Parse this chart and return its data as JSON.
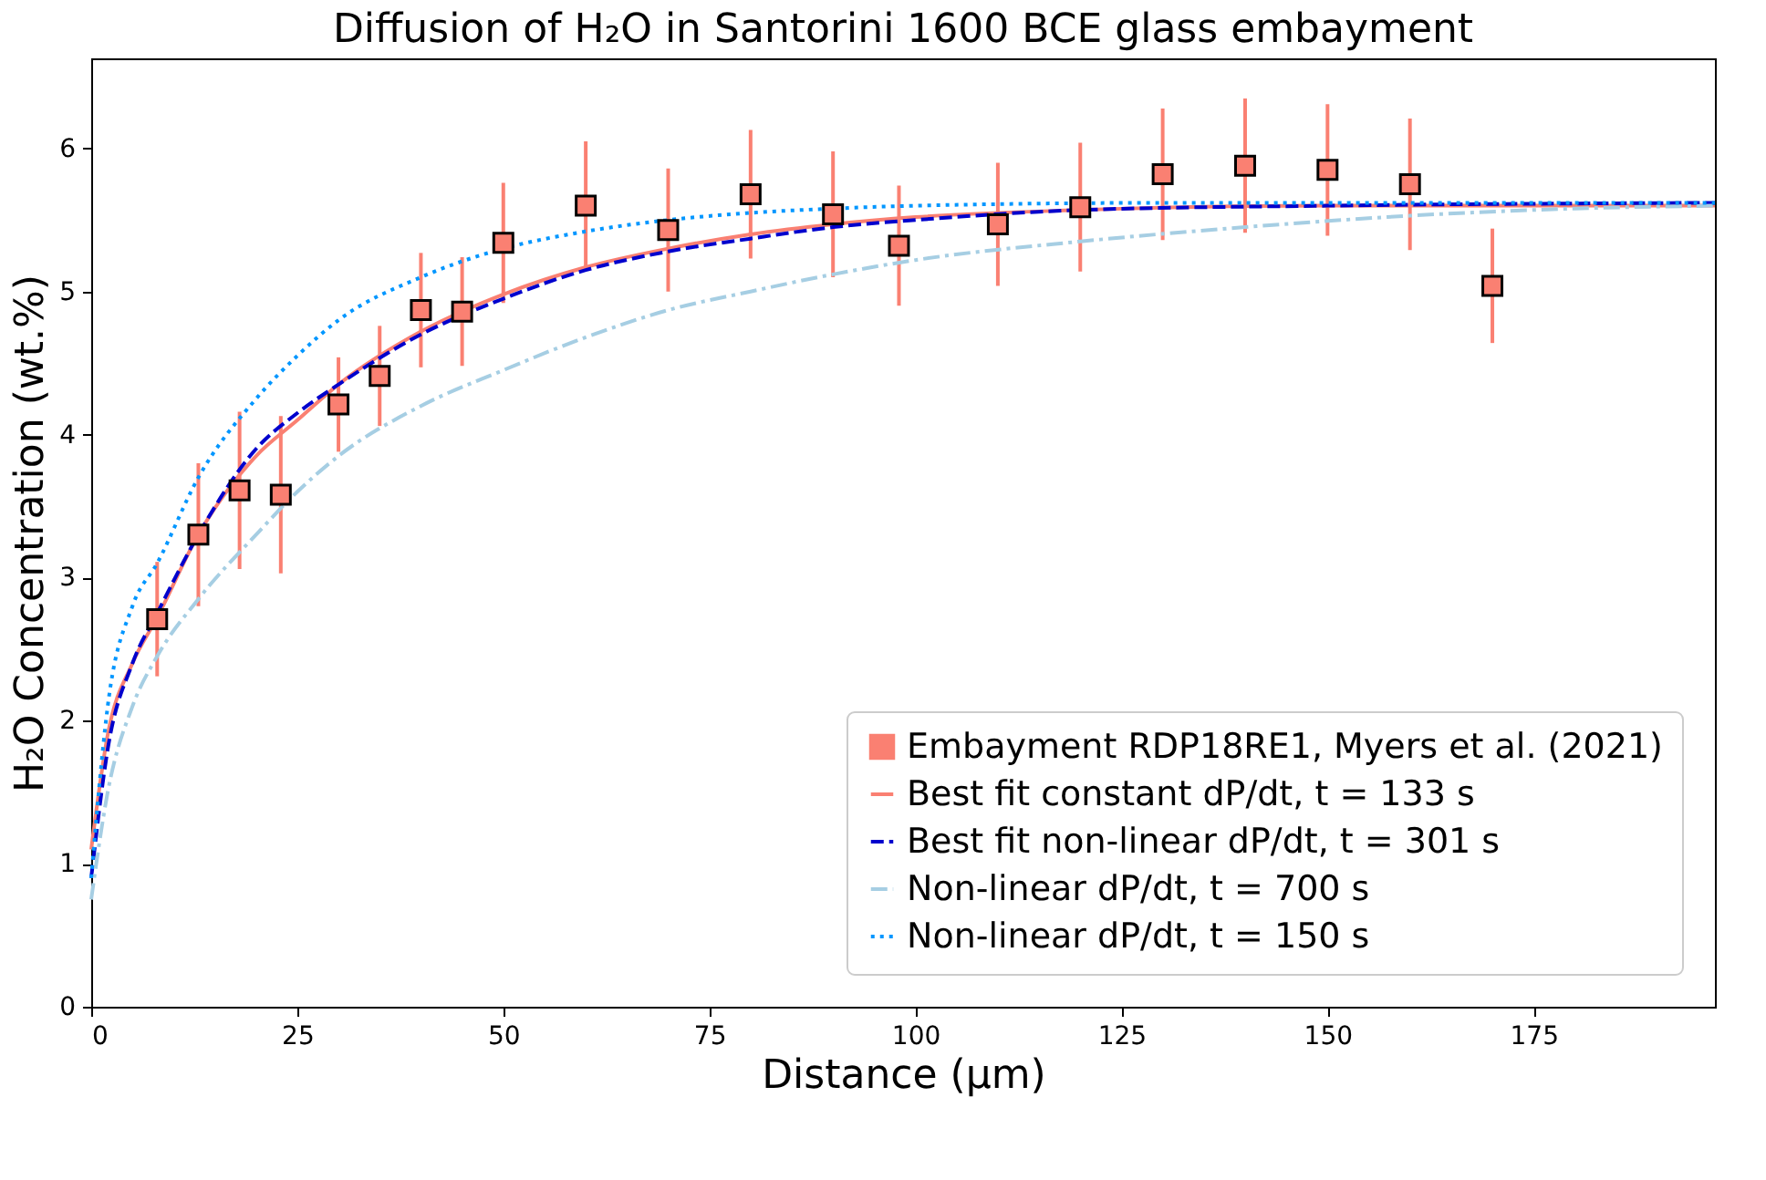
{
  "chart_data": {
    "type": "line",
    "title": "Diffusion of H₂O in Santorini 1600 BCE glass embayment",
    "xlabel": "Distance (μm)",
    "ylabel": "H₂O Concentration (wt.%)",
    "xlim": [
      0,
      197
    ],
    "xticks": [
      0,
      25,
      50,
      75,
      100,
      125,
      150,
      175
    ],
    "ylim": [
      0,
      6.63
    ],
    "yticks": [
      0,
      1,
      2,
      3,
      4,
      5,
      6
    ],
    "grid": false,
    "legend": "bottom right",
    "series": [
      {
        "name": "Embayment RDP18RE1, Myers et al. (2021)",
        "type": "scatter",
        "marker": "square",
        "color": "#fa8072",
        "x": [
          8,
          13,
          18,
          23,
          30,
          35,
          40,
          45,
          50,
          60,
          70,
          80,
          90,
          98,
          110,
          120,
          130,
          140,
          150,
          160,
          170
        ],
        "values": [
          2.71,
          3.3,
          3.61,
          3.58,
          4.21,
          4.41,
          4.87,
          4.86,
          5.34,
          5.6,
          5.43,
          5.68,
          5.54,
          5.32,
          5.47,
          5.59,
          5.82,
          5.88,
          5.85,
          5.75,
          5.04
        ],
        "errors": [
          0.4,
          0.5,
          0.55,
          0.55,
          0.33,
          0.35,
          0.4,
          0.38,
          0.42,
          0.45,
          0.43,
          0.45,
          0.44,
          0.42,
          0.43,
          0.45,
          0.46,
          0.47,
          0.46,
          0.46,
          0.4
        ]
      },
      {
        "name": "Best fit constant dP/dt, t = 133 s",
        "type": "line",
        "line_style": "solid",
        "color": "#fa8072",
        "x": [
          0,
          2,
          5,
          8,
          13,
          20,
          25,
          30,
          40,
          50,
          60,
          70,
          80,
          90,
          100,
          120,
          150,
          197
        ],
        "values": [
          1.1,
          1.9,
          2.4,
          2.72,
          3.3,
          3.85,
          4.1,
          4.35,
          4.72,
          4.98,
          5.17,
          5.3,
          5.4,
          5.47,
          5.52,
          5.57,
          5.6,
          5.6
        ]
      },
      {
        "name": "Best fit non-linear dP/dt, t = 301 s",
        "type": "line",
        "line_style": "dashed",
        "color": "#0000cd",
        "x": [
          0,
          2,
          5,
          8,
          13,
          20,
          25,
          30,
          40,
          50,
          60,
          70,
          80,
          90,
          100,
          120,
          150,
          197
        ],
        "values": [
          0.9,
          1.8,
          2.4,
          2.75,
          3.3,
          3.9,
          4.15,
          4.35,
          4.7,
          4.95,
          5.15,
          5.28,
          5.37,
          5.45,
          5.5,
          5.57,
          5.6,
          5.62
        ]
      },
      {
        "name": "Non-linear dP/dt, t = 700 s",
        "type": "line",
        "line_style": "dashdot",
        "color": "#a6cee3",
        "x": [
          0,
          2,
          5,
          8,
          13,
          20,
          25,
          30,
          40,
          50,
          60,
          70,
          80,
          90,
          100,
          120,
          140,
          160,
          180,
          197
        ],
        "values": [
          0.75,
          1.5,
          2.1,
          2.45,
          2.85,
          3.3,
          3.6,
          3.85,
          4.2,
          4.45,
          4.68,
          4.87,
          5.0,
          5.12,
          5.22,
          5.35,
          5.45,
          5.53,
          5.58,
          5.6
        ]
      },
      {
        "name": "Non-linear dP/dt, t = 150 s",
        "type": "line",
        "line_style": "dotted",
        "color": "#0096ff",
        "x": [
          0,
          2,
          5,
          8,
          13,
          20,
          25,
          30,
          40,
          50,
          60,
          70,
          80,
          90,
          100,
          130,
          197
        ],
        "values": [
          0.9,
          2.1,
          2.8,
          3.1,
          3.7,
          4.25,
          4.55,
          4.8,
          5.1,
          5.3,
          5.42,
          5.5,
          5.55,
          5.58,
          5.6,
          5.62,
          5.62
        ]
      }
    ]
  }
}
